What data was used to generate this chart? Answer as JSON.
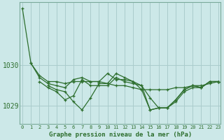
{
  "xlabel": "Graphe pression niveau de la mer (hPa)",
  "ylabel": "",
  "bg_color": "#cce8e8",
  "grid_color": "#aacccc",
  "line_color": "#2d6e2d",
  "x": [
    0,
    1,
    2,
    3,
    4,
    5,
    6,
    7,
    8,
    9,
    10,
    11,
    12,
    13,
    14,
    15,
    16,
    17,
    18,
    19,
    20,
    21,
    22,
    23
  ],
  "series": [
    [
      1031.4,
      1030.05,
      1029.75,
      1029.6,
      1029.6,
      1029.55,
      1029.6,
      1029.6,
      1029.6,
      1029.6,
      1029.55,
      1029.5,
      1029.5,
      1029.45,
      1029.4,
      1029.4,
      1029.4,
      1029.4,
      1029.45,
      1029.45,
      1029.5,
      1029.5,
      1029.55,
      1029.6
    ],
    [
      null,
      1030.05,
      1029.7,
      1029.55,
      1029.5,
      1029.45,
      1029.65,
      1029.7,
      1029.6,
      1029.6,
      1029.8,
      1029.65,
      1029.65,
      1029.6,
      1029.5,
      1029.2,
      1028.95,
      1028.95,
      1029.15,
      1029.4,
      1029.5,
      1029.45,
      1029.6,
      1029.6
    ],
    [
      null,
      null,
      1029.6,
      1029.45,
      1029.35,
      1029.15,
      1029.25,
      1029.65,
      1029.5,
      1029.5,
      1029.5,
      1029.7,
      1029.6,
      1029.55,
      1029.5,
      1028.9,
      1028.95,
      1028.95,
      1029.15,
      1029.4,
      1029.5,
      1029.45,
      1029.6,
      1029.6
    ],
    [
      null,
      null,
      null,
      1029.5,
      1029.4,
      1029.35,
      1029.1,
      1028.9,
      1029.2,
      1029.55,
      1029.55,
      1029.8,
      1029.7,
      1029.6,
      1029.4,
      1028.9,
      1028.95,
      1028.95,
      1029.1,
      1029.35,
      1029.45,
      1029.45,
      1029.6,
      1029.6
    ]
  ],
  "yticks": [
    1029,
    1030
  ],
  "xtick_labels": [
    "0",
    "1",
    "2",
    "3",
    "4",
    "5",
    "6",
    "7",
    "8",
    "9",
    "10",
    "11",
    "12",
    "13",
    "14",
    "15",
    "16",
    "17",
    "18",
    "19",
    "20",
    "21",
    "22",
    "23"
  ],
  "ylim": [
    1028.55,
    1031.55
  ],
  "xlim": [
    -0.3,
    23.3
  ],
  "figsize": [
    3.2,
    2.0
  ],
  "dpi": 100
}
